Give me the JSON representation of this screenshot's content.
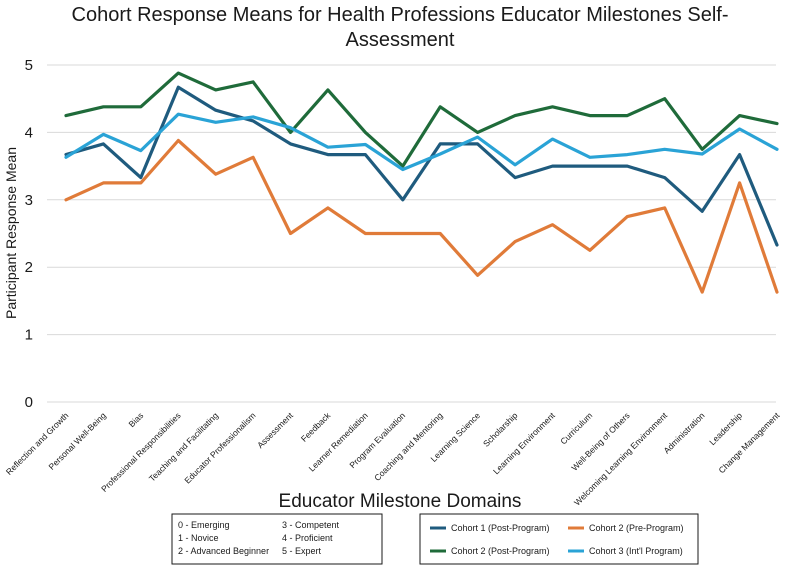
{
  "chart_data": {
    "type": "line",
    "title": "Cohort Response Means for Health Professions Educator Milestones Self-Assessment",
    "title_lines": [
      "Cohort Response Means for Health Professions Educator Milestones Self-",
      "Assessment"
    ],
    "xlabel": "Educator Milestone Domains",
    "ylabel": "Participant Response Mean",
    "ylim": [
      0,
      5
    ],
    "yticks": [
      "0",
      "1",
      "2",
      "3",
      "4",
      "5"
    ],
    "grid": true,
    "categories": [
      "Reflection and Growth",
      "Personal Well-Being",
      "Bias",
      "Professional Responsibilities",
      "Teaching and Facilitating",
      "Educator Professionalism",
      "Assessment",
      "Feedback",
      "Learner Remediation",
      "Program Evaluation",
      "Coaching and Mentoring",
      "Learning Science",
      "Scholarship",
      "Learning Environment",
      "Curriculum",
      "Well-Being of Others",
      "Welcoming Learning Environment",
      "Administration",
      "Leadership",
      "Change Management"
    ],
    "series": [
      {
        "name": "Cohort 1 (Post-Program)",
        "color": "#1f5b7e",
        "values": [
          3.67,
          3.83,
          3.33,
          4.67,
          4.33,
          4.17,
          3.83,
          3.67,
          3.67,
          3.0,
          3.83,
          3.83,
          3.33,
          3.5,
          3.5,
          3.5,
          3.33,
          2.83,
          3.67,
          2.33
        ]
      },
      {
        "name": "Cohort 2 (Pre-Program)",
        "color": "#e07b39",
        "values": [
          3.0,
          3.25,
          3.25,
          3.88,
          3.38,
          3.63,
          2.5,
          2.88,
          2.5,
          2.5,
          2.5,
          1.88,
          2.38,
          2.63,
          2.25,
          2.75,
          2.88,
          1.63,
          3.25,
          1.63
        ]
      },
      {
        "name": "Cohort 2 (Post-Program)",
        "color": "#1f6b3a",
        "values": [
          4.25,
          4.38,
          4.38,
          4.88,
          4.63,
          4.75,
          4.0,
          4.63,
          4.0,
          3.5,
          4.38,
          4.0,
          4.25,
          4.38,
          4.25,
          4.25,
          4.5,
          3.75,
          4.25,
          4.13
        ]
      },
      {
        "name": "Cohort 3 (Int'l Program)",
        "color": "#2aa3d6",
        "values": [
          3.63,
          3.97,
          3.73,
          4.27,
          4.15,
          4.23,
          4.07,
          3.78,
          3.82,
          3.45,
          3.68,
          3.93,
          3.52,
          3.9,
          3.63,
          3.67,
          3.75,
          3.68,
          4.05,
          3.75
        ]
      }
    ],
    "legend_order": [
      0,
      1,
      2,
      3
    ],
    "scale_key": [
      "0 - Emerging",
      "1 - Novice",
      "2 - Advanced Beginner",
      "3 - Competent",
      "4 - Proficient",
      "5 - Expert"
    ]
  }
}
